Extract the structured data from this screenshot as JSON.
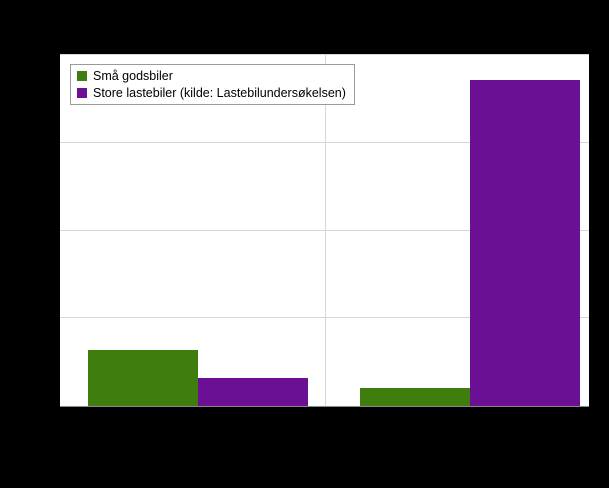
{
  "chart_data": {
    "type": "bar",
    "categories": [
      "",
      ""
    ],
    "series": [
      {
        "name": "Små godsbiler",
        "color": "#3f7e0e",
        "values": [
          16,
          5
        ]
      },
      {
        "name": "Store lastebiler (kilde: Lastebilundersøkelsen)",
        "color": "#6b0f94",
        "values": [
          8,
          93
        ]
      }
    ],
    "title": "",
    "xlabel": "",
    "ylabel": "",
    "ylim": [
      0,
      100
    ],
    "gridline_step": 25,
    "grid": true,
    "legend_position": "top-left-inside"
  },
  "colors": {
    "page_background": "#000000",
    "plot_background": "#ffffff",
    "gridline": "#d6d6d6",
    "axis_line": "#8a8a8a",
    "legend_border": "#9a9a9a"
  }
}
